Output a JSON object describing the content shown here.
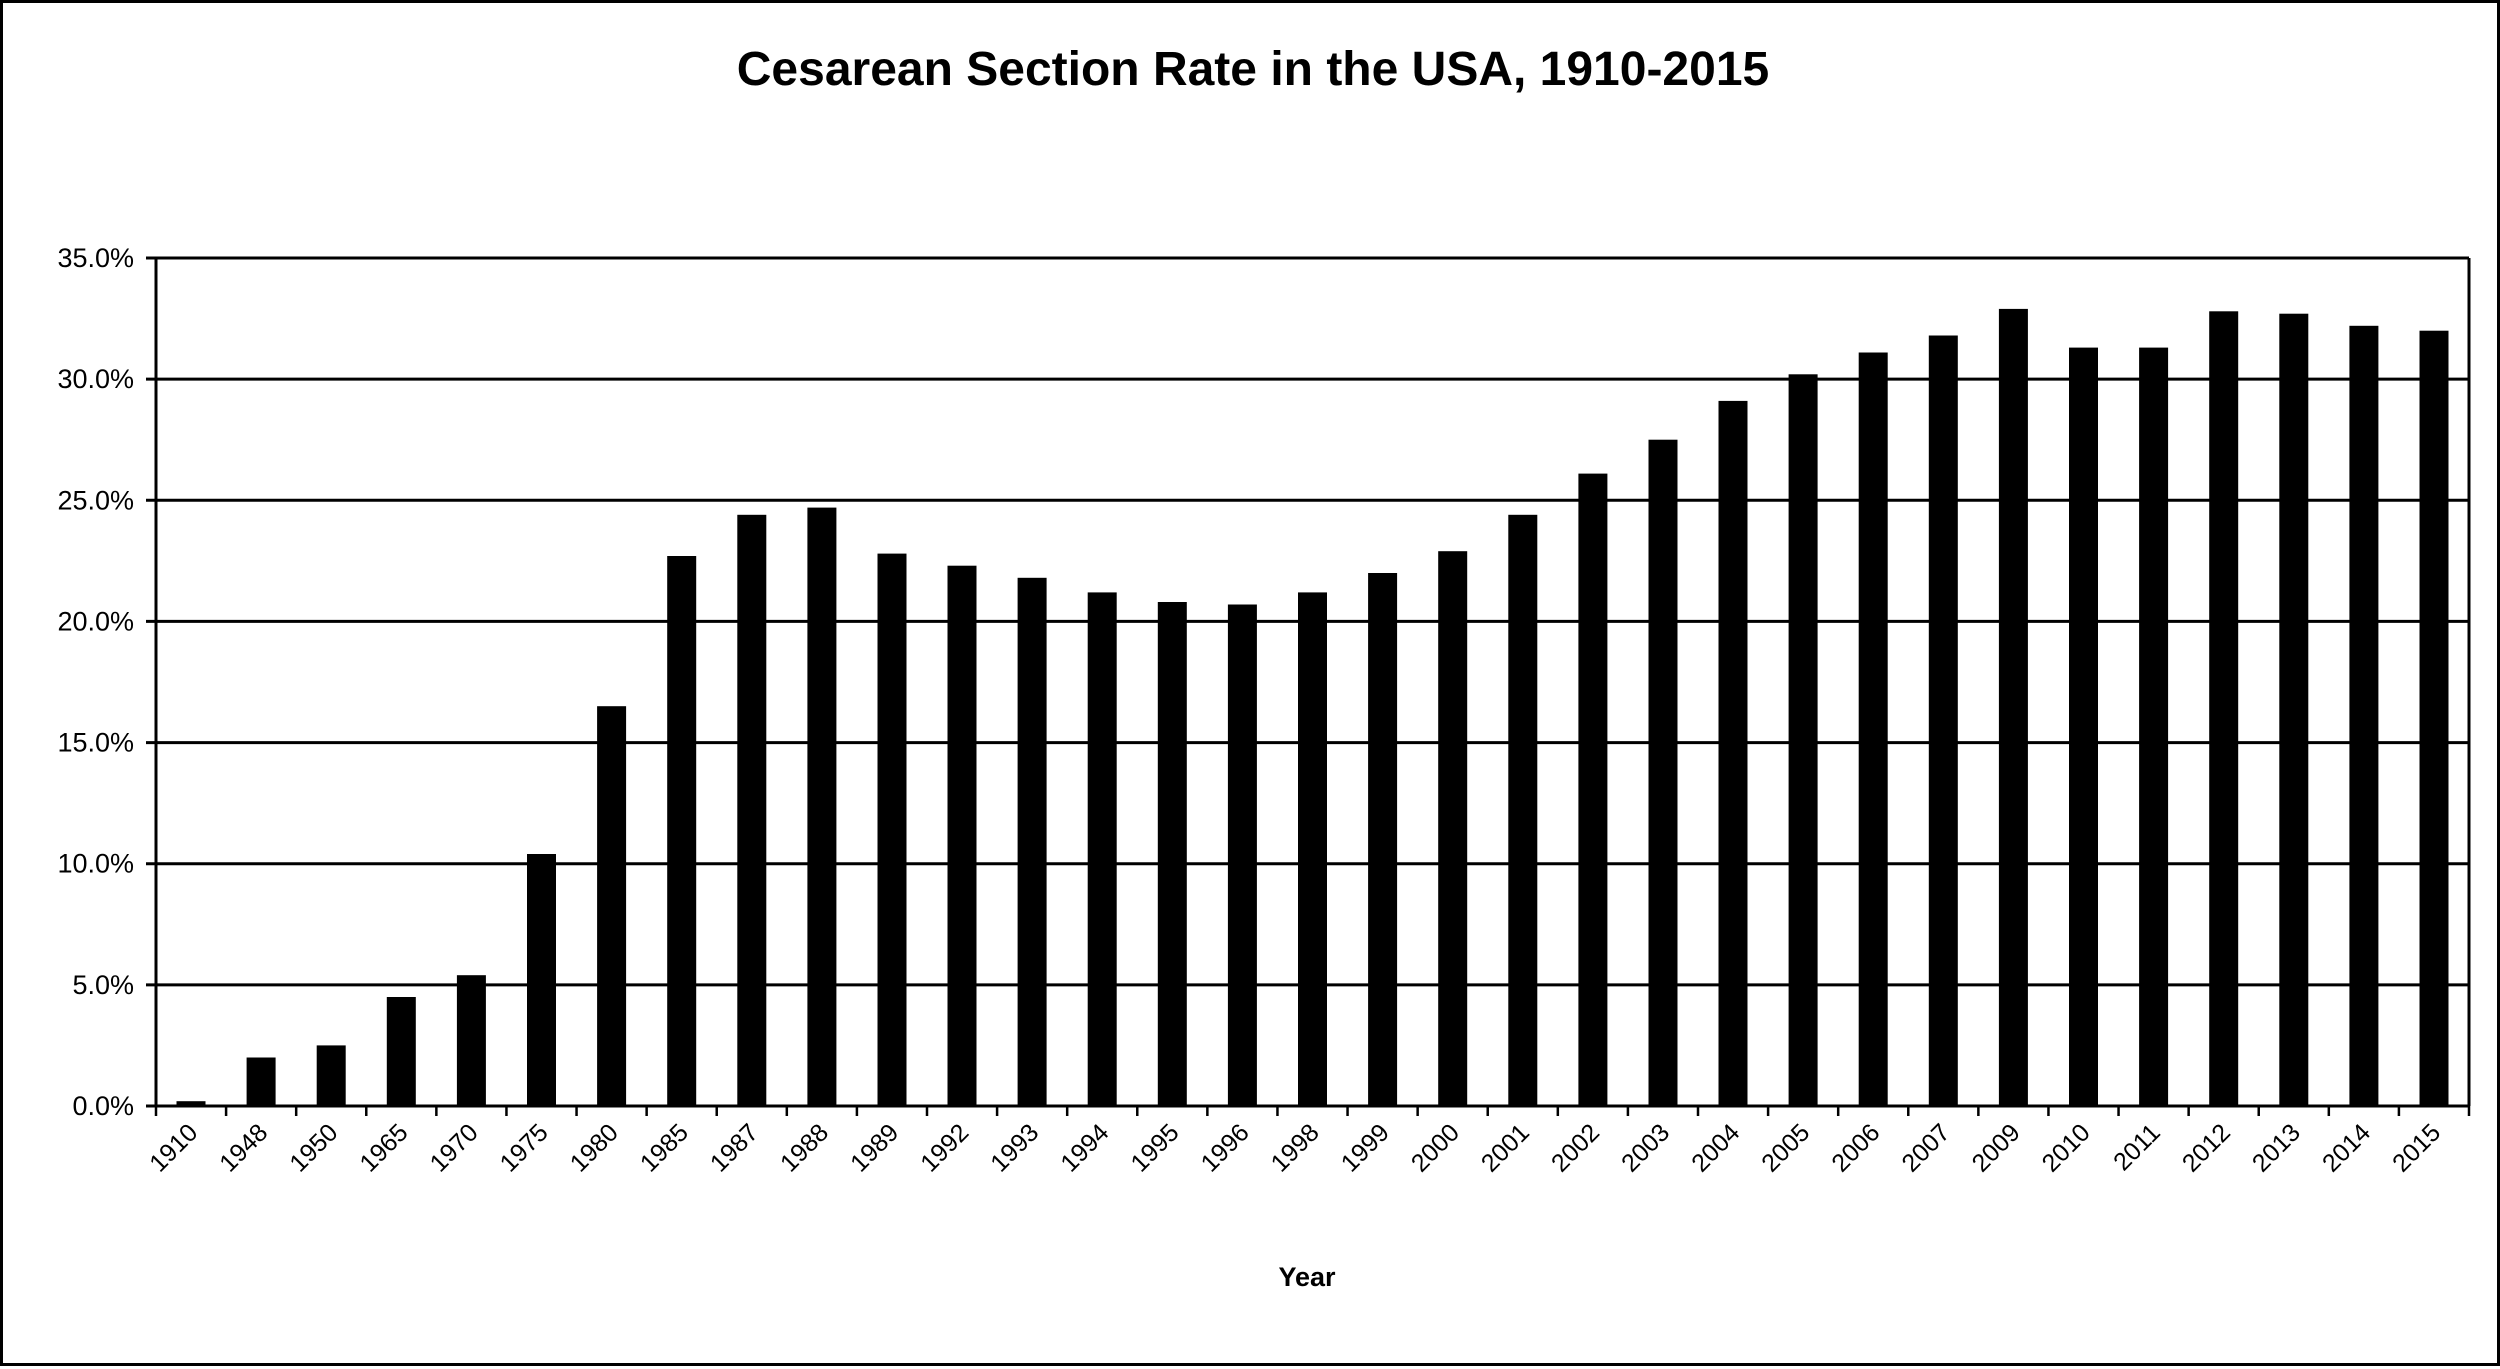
{
  "chart_data": {
    "type": "bar",
    "title": "Cesarean Section Rate in the USA, 1910-2015",
    "xlabel": "Year",
    "ylabel": "",
    "ylim": [
      0,
      35
    ],
    "y_ticks": [
      "0.0%",
      "5.0%",
      "10.0%",
      "15.0%",
      "20.0%",
      "25.0%",
      "30.0%",
      "35.0%"
    ],
    "grid": "horizontal",
    "legend": "none",
    "bar_color": "#000000",
    "categories": [
      "1910",
      "1948",
      "1950",
      "1965",
      "1970",
      "1975",
      "1980",
      "1985",
      "1987",
      "1988",
      "1989",
      "1992",
      "1993",
      "1994",
      "1995",
      "1996",
      "1998",
      "1999",
      "2000",
      "2001",
      "2002",
      "2003",
      "2004",
      "2005",
      "2006",
      "2007",
      "2009",
      "2010",
      "2011",
      "2012",
      "2013",
      "2014",
      "2015"
    ],
    "values": [
      0.2,
      2.0,
      2.5,
      4.5,
      5.4,
      10.4,
      16.5,
      22.7,
      24.4,
      24.7,
      22.8,
      22.3,
      21.8,
      21.2,
      20.8,
      20.7,
      21.2,
      22.0,
      22.9,
      24.4,
      26.1,
      27.5,
      29.1,
      30.2,
      31.1,
      31.8,
      32.9,
      31.3,
      31.3,
      32.8,
      32.7,
      32.2,
      32.0
    ]
  }
}
